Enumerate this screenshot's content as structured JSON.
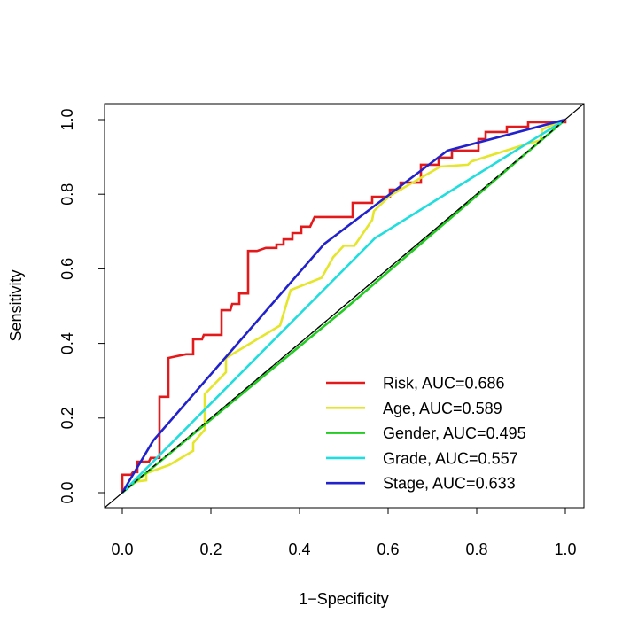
{
  "chart_data": {
    "type": "line",
    "title": "",
    "xlabel": "1−Specificity",
    "ylabel": "Sensitivity",
    "xlim": [
      0,
      1
    ],
    "ylim": [
      0,
      1
    ],
    "xticks": [
      "0.0",
      "0.2",
      "0.4",
      "0.6",
      "0.8",
      "1.0"
    ],
    "yticks": [
      "0.0",
      "0.2",
      "0.4",
      "0.6",
      "0.8",
      "1.0"
    ],
    "grid": false,
    "legend_position": "bottom-right",
    "series": [
      {
        "name": "Risk, AUC=0.686",
        "color": "#e31a1c",
        "step": true,
        "points": [
          [
            0,
            0
          ],
          [
            0,
            0.048
          ],
          [
            0.02,
            0.048
          ],
          [
            0.024,
            0.055
          ],
          [
            0.034,
            0.055
          ],
          [
            0.034,
            0.083
          ],
          [
            0.06,
            0.083
          ],
          [
            0.064,
            0.093
          ],
          [
            0.084,
            0.093
          ],
          [
            0.084,
            0.257
          ],
          [
            0.104,
            0.257
          ],
          [
            0.104,
            0.361
          ],
          [
            0.124,
            0.366
          ],
          [
            0.144,
            0.371
          ],
          [
            0.16,
            0.371
          ],
          [
            0.16,
            0.411
          ],
          [
            0.18,
            0.411
          ],
          [
            0.184,
            0.423
          ],
          [
            0.224,
            0.423
          ],
          [
            0.224,
            0.489
          ],
          [
            0.244,
            0.489
          ],
          [
            0.248,
            0.506
          ],
          [
            0.264,
            0.506
          ],
          [
            0.264,
            0.534
          ],
          [
            0.284,
            0.534
          ],
          [
            0.284,
            0.648
          ],
          [
            0.304,
            0.648
          ],
          [
            0.324,
            0.656
          ],
          [
            0.348,
            0.656
          ],
          [
            0.348,
            0.665
          ],
          [
            0.364,
            0.665
          ],
          [
            0.364,
            0.679
          ],
          [
            0.384,
            0.679
          ],
          [
            0.384,
            0.696
          ],
          [
            0.404,
            0.696
          ],
          [
            0.404,
            0.713
          ],
          [
            0.424,
            0.713
          ],
          [
            0.434,
            0.739
          ],
          [
            0.52,
            0.739
          ],
          [
            0.52,
            0.777
          ],
          [
            0.564,
            0.777
          ],
          [
            0.564,
            0.793
          ],
          [
            0.604,
            0.793
          ],
          [
            0.604,
            0.812
          ],
          [
            0.628,
            0.812
          ],
          [
            0.628,
            0.831
          ],
          [
            0.674,
            0.831
          ],
          [
            0.674,
            0.879
          ],
          [
            0.714,
            0.879
          ],
          [
            0.714,
            0.898
          ],
          [
            0.744,
            0.898
          ],
          [
            0.744,
            0.917
          ],
          [
            0.804,
            0.917
          ],
          [
            0.804,
            0.948
          ],
          [
            0.82,
            0.948
          ],
          [
            0.82,
            0.967
          ],
          [
            0.868,
            0.967
          ],
          [
            0.868,
            0.981
          ],
          [
            0.916,
            0.981
          ],
          [
            0.916,
            0.993
          ],
          [
            1,
            0.993
          ],
          [
            1,
            1
          ]
        ]
      },
      {
        "name": "Age, AUC=0.589",
        "color": "#e5e52a",
        "points": [
          [
            0,
            0
          ],
          [
            0.026,
            0.029
          ],
          [
            0.054,
            0.033
          ],
          [
            0.054,
            0.052
          ],
          [
            0.106,
            0.074
          ],
          [
            0.16,
            0.112
          ],
          [
            0.16,
            0.133
          ],
          [
            0.186,
            0.169
          ],
          [
            0.186,
            0.264
          ],
          [
            0.234,
            0.323
          ],
          [
            0.234,
            0.361
          ],
          [
            0.356,
            0.448
          ],
          [
            0.38,
            0.543
          ],
          [
            0.45,
            0.576
          ],
          [
            0.476,
            0.631
          ],
          [
            0.5,
            0.662
          ],
          [
            0.524,
            0.662
          ],
          [
            0.564,
            0.731
          ],
          [
            0.568,
            0.755
          ],
          [
            0.604,
            0.796
          ],
          [
            0.718,
            0.874
          ],
          [
            0.78,
            0.879
          ],
          [
            0.788,
            0.888
          ],
          [
            0.898,
            0.929
          ],
          [
            0.944,
            0.945
          ],
          [
            0.948,
            0.974
          ],
          [
            1,
            1
          ]
        ]
      },
      {
        "name": "Gender, AUC=0.495",
        "color": "#22cc22",
        "points": [
          [
            0,
            0
          ],
          [
            0.5,
            0.49
          ],
          [
            1,
            1
          ]
        ]
      },
      {
        "name": "Grade, AUC=0.557",
        "color": "#22dddd",
        "points": [
          [
            0,
            0
          ],
          [
            0.57,
            0.682
          ],
          [
            1,
            1
          ]
        ]
      },
      {
        "name": "Stage, AUC=0.633",
        "color": "#2222cc",
        "points": [
          [
            0,
            0
          ],
          [
            0.07,
            0.14
          ],
          [
            0.456,
            0.667
          ],
          [
            0.734,
            0.917
          ],
          [
            1,
            1
          ]
        ]
      }
    ]
  }
}
